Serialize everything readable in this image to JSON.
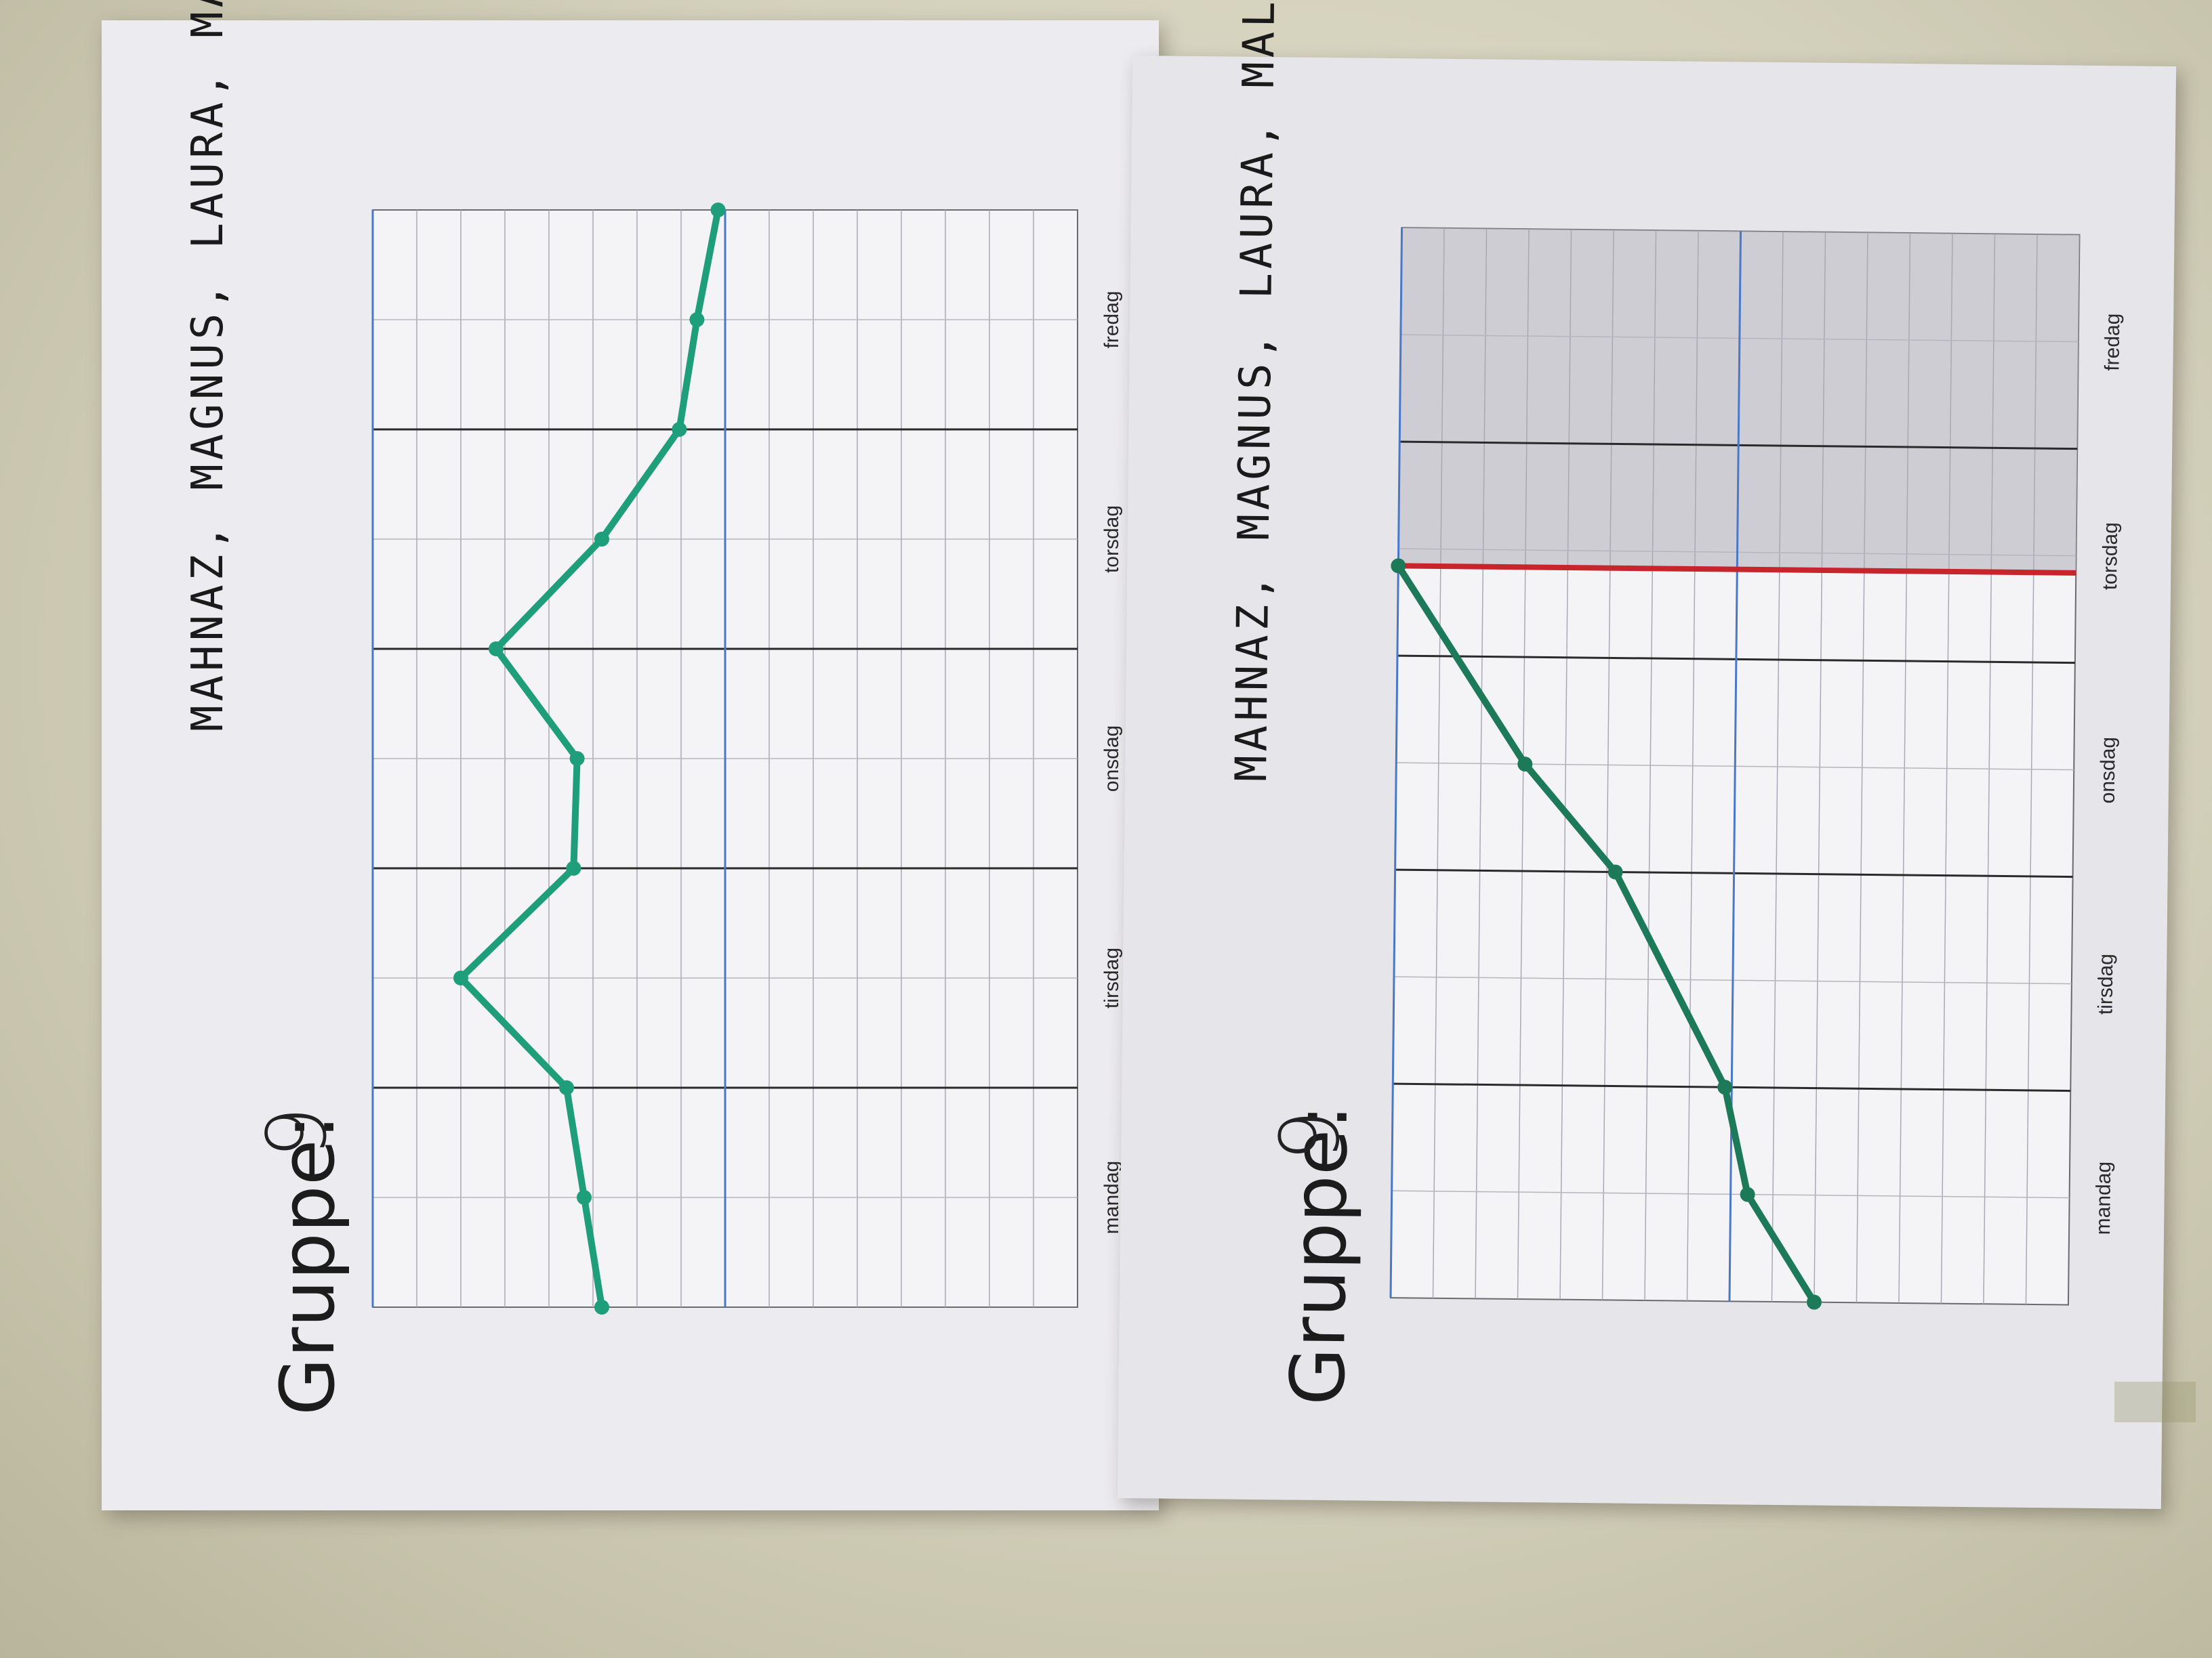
{
  "posters": [
    {
      "group_label": "Gruppe:",
      "group_number": "9",
      "names": "MAHNAZ, MAGNUS, LAURA, MALOU",
      "days": [
        "mandag",
        "tirsdag",
        "onsdag",
        "torsdag",
        "fredag"
      ],
      "line_color": "#1f9e7c"
    },
    {
      "group_label": "Gruppe:",
      "group_number": "9",
      "names": "MAHNAZ, MAGNUS, LAURA, MALOU",
      "days": [
        "mandag",
        "tirsdag",
        "onsdag",
        "torsdag",
        "fredag"
      ],
      "line_color": "#1d7a58",
      "marker_color": "#c8242c"
    }
  ],
  "chart_data": [
    {
      "type": "line",
      "categories": [
        "mandag",
        "tirsdag",
        "onsdag",
        "torsdag",
        "fredag"
      ],
      "x": [
        0,
        0.5,
        1,
        1.5,
        2,
        2.5,
        3,
        3.5,
        4,
        4.5,
        5
      ],
      "y": [
        0.35,
        0.4,
        0.45,
        0.75,
        0.43,
        0.42,
        0.65,
        0.35,
        0.13,
        0.08,
        0.02
      ],
      "ylim": [
        -1,
        1
      ],
      "grid": true
    },
    {
      "type": "line",
      "categories": [
        "mandag",
        "tirsdag",
        "onsdag",
        "torsdag",
        "fredag"
      ],
      "x": [
        0,
        0.5,
        1,
        2,
        2.5,
        3.42
      ],
      "y": [
        -0.25,
        -0.05,
        0.02,
        0.35,
        0.62,
        1.0
      ],
      "ylim": [
        -1,
        1
      ],
      "grid": true,
      "marker_x": 3.42
    }
  ]
}
